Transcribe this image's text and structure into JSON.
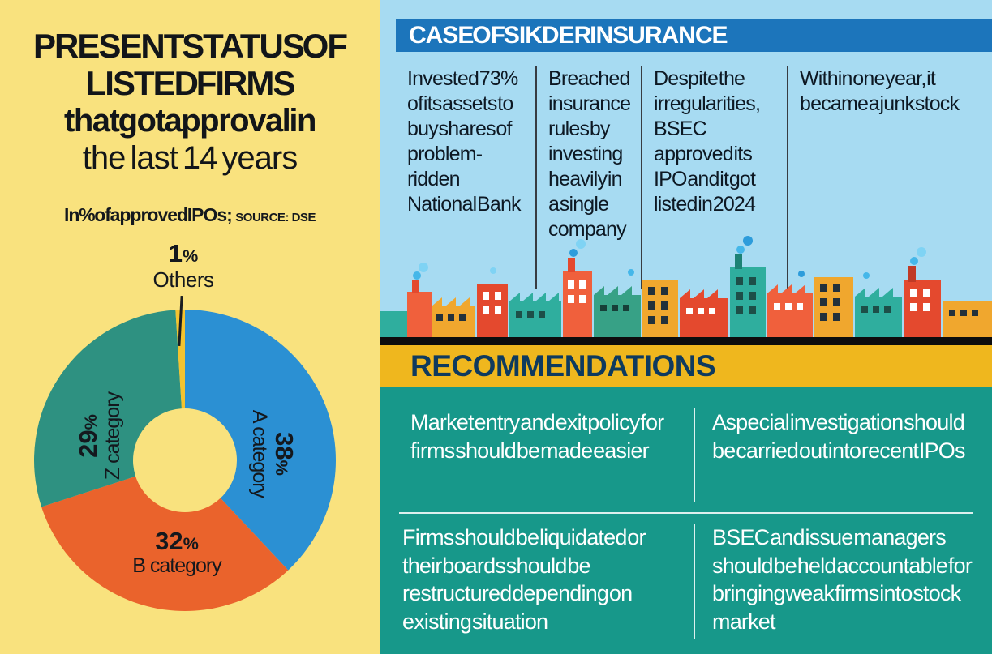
{
  "left_panel": {
    "title_lines": [
      "PRESENT STATUS OF",
      "LISTED FIRMS",
      "that got approval in",
      "the last 14 years"
    ],
    "subtitle": "In % of approved IPOs;",
    "source": "SOURCE: DSE"
  },
  "chart_data": {
    "type": "pie",
    "subtype": "donut",
    "title": "PRESENT STATUS OF LISTED FIRMS that got approval in the last 14 years",
    "units": "% of approved IPOs",
    "source": "DSE",
    "percent_sign": "%",
    "direction": "clockwise",
    "start_angle_deg": 0,
    "slices": [
      {
        "label": "A category",
        "value": 38,
        "color": "#2B90D3"
      },
      {
        "label": "B category",
        "value": 32,
        "color": "#EA632C"
      },
      {
        "label": "Z category",
        "value": 29,
        "color": "#2E9181"
      },
      {
        "label": "Others",
        "value": 1,
        "color": "#F3C32F"
      }
    ]
  },
  "case_panel": {
    "header": "CASE OF SIKDER INSURANCE",
    "facts": [
      "Invested 73% of its assets to buy shares of problem-ridden National Bank",
      "Breached insurance rules by investing heavily in a single company",
      "Despite the irregularities, BSEC approved its IPO and it got listed in 2024",
      "Within one year, it became a junk stock"
    ]
  },
  "recommendations": {
    "header": "RECOMMENDATIONS",
    "items": [
      "Market entry and exit policy for firms should be made easier",
      "A special investigation should be carried out into recent IPOs",
      "Firms should be liquidated or their boards should be restructured depending on existing situation",
      "BSEC and issue managers should be held accountable for bringing weak firms into stock market"
    ]
  },
  "colors": {
    "left_bg": "#F9E27E",
    "case_header_bg": "#1C75BB",
    "case_bg": "#A7DBF2",
    "recommendation_bar_bg": "#EFB71E",
    "recommendations_bg": "#17988A",
    "rec_header_color": "#0E3A5E",
    "text_dark": "#0D1823"
  }
}
